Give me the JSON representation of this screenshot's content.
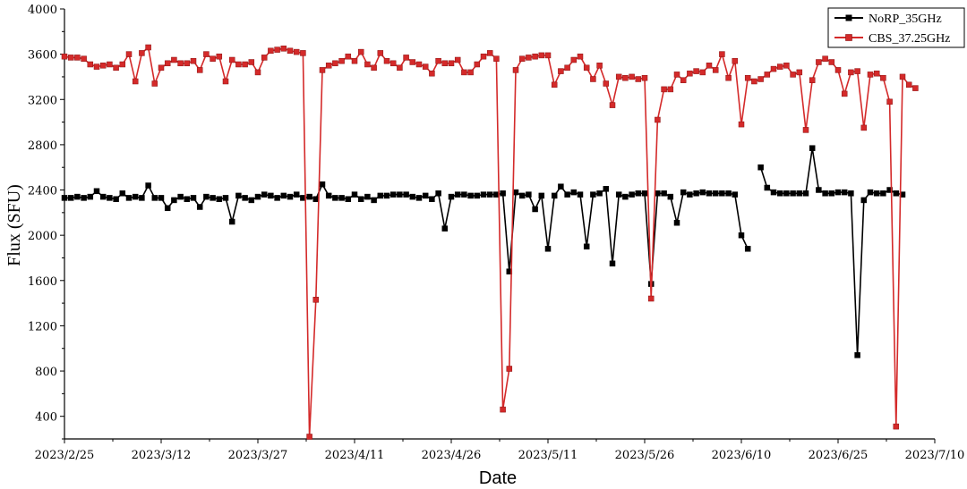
{
  "chart_data": {
    "type": "line",
    "title": "",
    "xlabel": "Date",
    "ylabel": "Flux (SFU)",
    "xlim": [
      "2023-02-25",
      "2023-07-10"
    ],
    "ylim": [
      200,
      4000
    ],
    "x_ticks": [
      "2023/2/25",
      "2023/3/12",
      "2023/3/27",
      "2023/4/11",
      "2023/4/26",
      "2023/5/11",
      "2023/5/26",
      "2023/6/10",
      "2023/6/25",
      "2023/7/10"
    ],
    "y_ticks": [
      "400",
      "800",
      "1200",
      "1600",
      "2000",
      "2400",
      "2800",
      "3200",
      "3600",
      "4000"
    ],
    "grid": false,
    "legend": "top-right",
    "series": [
      {
        "name": "NoRP_35GHz",
        "color": "#000000",
        "marker": "square",
        "points": [
          [
            "2023-02-25",
            2330
          ],
          [
            "2023-02-26",
            2330
          ],
          [
            "2023-02-27",
            2340
          ],
          [
            "2023-02-28",
            2330
          ],
          [
            "2023-03-01",
            2340
          ],
          [
            "2023-03-02",
            2390
          ],
          [
            "2023-03-03",
            2340
          ],
          [
            "2023-03-04",
            2330
          ],
          [
            "2023-03-05",
            2320
          ],
          [
            "2023-03-06",
            2370
          ],
          [
            "2023-03-07",
            2330
          ],
          [
            "2023-03-08",
            2340
          ],
          [
            "2023-03-09",
            2330
          ],
          [
            "2023-03-10",
            2440
          ],
          [
            "2023-03-11",
            2330
          ],
          [
            "2023-03-12",
            2330
          ],
          [
            "2023-03-13",
            2240
          ],
          [
            "2023-03-14",
            2310
          ],
          [
            "2023-03-15",
            2340
          ],
          [
            "2023-03-16",
            2320
          ],
          [
            "2023-03-17",
            2330
          ],
          [
            "2023-03-18",
            2250
          ],
          [
            "2023-03-19",
            2340
          ],
          [
            "2023-03-20",
            2330
          ],
          [
            "2023-03-21",
            2320
          ],
          [
            "2023-03-22",
            2330
          ],
          [
            "2023-03-23",
            2120
          ],
          [
            "2023-03-24",
            2350
          ],
          [
            "2023-03-25",
            2330
          ],
          [
            "2023-03-26",
            2310
          ],
          [
            "2023-03-27",
            2340
          ],
          [
            "2023-03-28",
            2360
          ],
          [
            "2023-03-29",
            2350
          ],
          [
            "2023-03-30",
            2330
          ],
          [
            "2023-03-31",
            2350
          ],
          [
            "2023-04-01",
            2340
          ],
          [
            "2023-04-02",
            2360
          ],
          [
            "2023-04-03",
            2330
          ],
          [
            "2023-04-04",
            2340
          ],
          [
            "2023-04-05",
            2320
          ],
          [
            "2023-04-06",
            2450
          ],
          [
            "2023-04-07",
            2350
          ],
          [
            "2023-04-08",
            2330
          ],
          [
            "2023-04-09",
            2330
          ],
          [
            "2023-04-10",
            2320
          ],
          [
            "2023-04-11",
            2360
          ],
          [
            "2023-04-12",
            2320
          ],
          [
            "2023-04-13",
            2340
          ],
          [
            "2023-04-14",
            2310
          ],
          [
            "2023-04-15",
            2350
          ],
          [
            "2023-04-16",
            2350
          ],
          [
            "2023-04-17",
            2360
          ],
          [
            "2023-04-18",
            2360
          ],
          [
            "2023-04-19",
            2360
          ],
          [
            "2023-04-20",
            2340
          ],
          [
            "2023-04-21",
            2330
          ],
          [
            "2023-04-22",
            2350
          ],
          [
            "2023-04-23",
            2320
          ],
          [
            "2023-04-24",
            2370
          ],
          [
            "2023-04-25",
            2060
          ],
          [
            "2023-04-26",
            2340
          ],
          [
            "2023-04-27",
            2360
          ],
          [
            "2023-04-28",
            2360
          ],
          [
            "2023-04-29",
            2350
          ],
          [
            "2023-04-30",
            2350
          ],
          [
            "2023-05-01",
            2360
          ],
          [
            "2023-05-02",
            2360
          ],
          [
            "2023-05-03",
            2360
          ],
          [
            "2023-05-04",
            2370
          ],
          [
            "2023-05-05",
            1680
          ],
          [
            "2023-05-06",
            2380
          ],
          [
            "2023-05-07",
            2350
          ],
          [
            "2023-05-08",
            2360
          ],
          [
            "2023-05-09",
            2230
          ],
          [
            "2023-05-10",
            2350
          ],
          [
            "2023-05-11",
            1880
          ],
          [
            "2023-05-12",
            2350
          ],
          [
            "2023-05-13",
            2430
          ],
          [
            "2023-05-14",
            2360
          ],
          [
            "2023-05-15",
            2380
          ],
          [
            "2023-05-16",
            2360
          ],
          [
            "2023-05-17",
            1900
          ],
          [
            "2023-05-18",
            2360
          ],
          [
            "2023-05-19",
            2370
          ],
          [
            "2023-05-20",
            2410
          ],
          [
            "2023-05-21",
            1750
          ],
          [
            "2023-05-22",
            2360
          ],
          [
            "2023-05-23",
            2340
          ],
          [
            "2023-05-24",
            2360
          ],
          [
            "2023-05-25",
            2370
          ],
          [
            "2023-05-26",
            2370
          ],
          [
            "2023-05-27",
            1570
          ],
          [
            "2023-05-28",
            2370
          ],
          [
            "2023-05-29",
            2370
          ],
          [
            "2023-05-30",
            2340
          ],
          [
            "2023-05-31",
            2110
          ],
          [
            "2023-06-01",
            2380
          ],
          [
            "2023-06-02",
            2360
          ],
          [
            "2023-06-03",
            2370
          ],
          [
            "2023-06-04",
            2380
          ],
          [
            "2023-06-05",
            2370
          ],
          [
            "2023-06-06",
            2370
          ],
          [
            "2023-06-07",
            2370
          ],
          [
            "2023-06-08",
            2370
          ],
          [
            "2023-06-09",
            2360
          ],
          [
            "2023-06-10",
            2000
          ],
          [
            "2023-06-11",
            1880
          ],
          null,
          [
            "2023-06-13",
            2600
          ],
          [
            "2023-06-14",
            2420
          ],
          [
            "2023-06-15",
            2380
          ],
          [
            "2023-06-16",
            2370
          ],
          [
            "2023-06-17",
            2370
          ],
          [
            "2023-06-18",
            2370
          ],
          [
            "2023-06-19",
            2370
          ],
          [
            "2023-06-20",
            2370
          ],
          [
            "2023-06-21",
            2770
          ],
          [
            "2023-06-22",
            2400
          ],
          [
            "2023-06-23",
            2370
          ],
          [
            "2023-06-24",
            2370
          ],
          [
            "2023-06-25",
            2380
          ],
          [
            "2023-06-26",
            2380
          ],
          [
            "2023-06-27",
            2370
          ],
          [
            "2023-06-28",
            940
          ],
          [
            "2023-06-29",
            2310
          ],
          [
            "2023-06-30",
            2380
          ],
          [
            "2023-07-01",
            2370
          ],
          [
            "2023-07-02",
            2370
          ],
          [
            "2023-07-03",
            2400
          ],
          [
            "2023-07-04",
            2370
          ],
          [
            "2023-07-05",
            2360
          ]
        ]
      },
      {
        "name": "CBS_37.25GHz",
        "color": "#d42a2a",
        "marker": "square",
        "points": [
          [
            "2023-02-25",
            3580
          ],
          [
            "2023-02-26",
            3570
          ],
          [
            "2023-02-27",
            3570
          ],
          [
            "2023-02-28",
            3560
          ],
          [
            "2023-03-01",
            3510
          ],
          [
            "2023-03-02",
            3490
          ],
          [
            "2023-03-03",
            3500
          ],
          [
            "2023-03-04",
            3510
          ],
          [
            "2023-03-05",
            3480
          ],
          [
            "2023-03-06",
            3510
          ],
          [
            "2023-03-07",
            3600
          ],
          [
            "2023-03-08",
            3360
          ],
          [
            "2023-03-09",
            3610
          ],
          [
            "2023-03-10",
            3660
          ],
          [
            "2023-03-11",
            3340
          ],
          [
            "2023-03-12",
            3480
          ],
          [
            "2023-03-13",
            3520
          ],
          [
            "2023-03-14",
            3550
          ],
          [
            "2023-03-15",
            3520
          ],
          [
            "2023-03-16",
            3520
          ],
          [
            "2023-03-17",
            3540
          ],
          [
            "2023-03-18",
            3460
          ],
          [
            "2023-03-19",
            3600
          ],
          [
            "2023-03-20",
            3560
          ],
          [
            "2023-03-21",
            3580
          ],
          [
            "2023-03-22",
            3360
          ],
          [
            "2023-03-23",
            3550
          ],
          [
            "2023-03-24",
            3510
          ],
          [
            "2023-03-25",
            3510
          ],
          [
            "2023-03-26",
            3530
          ],
          [
            "2023-03-27",
            3440
          ],
          [
            "2023-03-28",
            3570
          ],
          [
            "2023-03-29",
            3630
          ],
          [
            "2023-03-30",
            3640
          ],
          [
            "2023-03-31",
            3650
          ],
          [
            "2023-04-01",
            3630
          ],
          [
            "2023-04-02",
            3620
          ],
          [
            "2023-04-03",
            3610
          ],
          [
            "2023-04-04",
            220
          ],
          [
            "2023-04-05",
            1430
          ],
          [
            "2023-04-06",
            3460
          ],
          [
            "2023-04-07",
            3500
          ],
          [
            "2023-04-08",
            3520
          ],
          [
            "2023-04-09",
            3540
          ],
          [
            "2023-04-10",
            3580
          ],
          [
            "2023-04-11",
            3540
          ],
          [
            "2023-04-12",
            3620
          ],
          [
            "2023-04-13",
            3510
          ],
          [
            "2023-04-14",
            3480
          ],
          [
            "2023-04-15",
            3610
          ],
          [
            "2023-04-16",
            3540
          ],
          [
            "2023-04-17",
            3520
          ],
          [
            "2023-04-18",
            3480
          ],
          [
            "2023-04-19",
            3570
          ],
          [
            "2023-04-20",
            3530
          ],
          [
            "2023-04-21",
            3510
          ],
          [
            "2023-04-22",
            3490
          ],
          [
            "2023-04-23",
            3430
          ],
          [
            "2023-04-24",
            3540
          ],
          [
            "2023-04-25",
            3520
          ],
          [
            "2023-04-26",
            3520
          ],
          [
            "2023-04-27",
            3550
          ],
          [
            "2023-04-28",
            3440
          ],
          [
            "2023-04-29",
            3440
          ],
          [
            "2023-04-30",
            3510
          ],
          [
            "2023-05-01",
            3580
          ],
          [
            "2023-05-02",
            3610
          ],
          [
            "2023-05-03",
            3560
          ],
          [
            "2023-05-04",
            460
          ],
          [
            "2023-05-05",
            820
          ],
          [
            "2023-05-06",
            3460
          ],
          [
            "2023-05-07",
            3560
          ],
          [
            "2023-05-08",
            3570
          ],
          [
            "2023-05-09",
            3580
          ],
          [
            "2023-05-10",
            3590
          ],
          [
            "2023-05-11",
            3590
          ],
          [
            "2023-05-12",
            3330
          ],
          [
            "2023-05-13",
            3450
          ],
          [
            "2023-05-14",
            3480
          ],
          [
            "2023-05-15",
            3550
          ],
          [
            "2023-05-16",
            3580
          ],
          [
            "2023-05-17",
            3480
          ],
          [
            "2023-05-18",
            3380
          ],
          [
            "2023-05-19",
            3500
          ],
          [
            "2023-05-20",
            3340
          ],
          [
            "2023-05-21",
            3150
          ],
          [
            "2023-05-22",
            3400
          ],
          [
            "2023-05-23",
            3390
          ],
          [
            "2023-05-24",
            3400
          ],
          [
            "2023-05-25",
            3380
          ],
          [
            "2023-05-26",
            3390
          ],
          [
            "2023-05-27",
            1440
          ],
          [
            "2023-05-28",
            3020
          ],
          [
            "2023-05-29",
            3290
          ],
          [
            "2023-05-30",
            3290
          ],
          [
            "2023-05-31",
            3420
          ],
          [
            "2023-06-01",
            3370
          ],
          [
            "2023-06-02",
            3430
          ],
          [
            "2023-06-03",
            3450
          ],
          [
            "2023-06-04",
            3440
          ],
          [
            "2023-06-05",
            3500
          ],
          [
            "2023-06-06",
            3460
          ],
          [
            "2023-06-07",
            3600
          ],
          [
            "2023-06-08",
            3390
          ],
          [
            "2023-06-09",
            3540
          ],
          [
            "2023-06-10",
            2980
          ],
          [
            "2023-06-11",
            3390
          ],
          [
            "2023-06-12",
            3360
          ],
          [
            "2023-06-13",
            3380
          ],
          [
            "2023-06-14",
            3420
          ],
          [
            "2023-06-15",
            3470
          ],
          [
            "2023-06-16",
            3490
          ],
          [
            "2023-06-17",
            3500
          ],
          [
            "2023-06-18",
            3420
          ],
          [
            "2023-06-19",
            3440
          ],
          [
            "2023-06-20",
            2930
          ],
          [
            "2023-06-21",
            3370
          ],
          [
            "2023-06-22",
            3530
          ],
          [
            "2023-06-23",
            3560
          ],
          [
            "2023-06-24",
            3530
          ],
          [
            "2023-06-25",
            3460
          ],
          [
            "2023-06-26",
            3250
          ],
          [
            "2023-06-27",
            3440
          ],
          [
            "2023-06-28",
            3450
          ],
          [
            "2023-06-29",
            2950
          ],
          [
            "2023-06-30",
            3420
          ],
          [
            "2023-07-01",
            3430
          ],
          [
            "2023-07-02",
            3390
          ],
          [
            "2023-07-03",
            3180
          ],
          [
            "2023-07-04",
            310
          ],
          [
            "2023-07-05",
            3400
          ],
          [
            "2023-07-06",
            3330
          ],
          [
            "2023-07-07",
            3300
          ]
        ]
      }
    ]
  }
}
